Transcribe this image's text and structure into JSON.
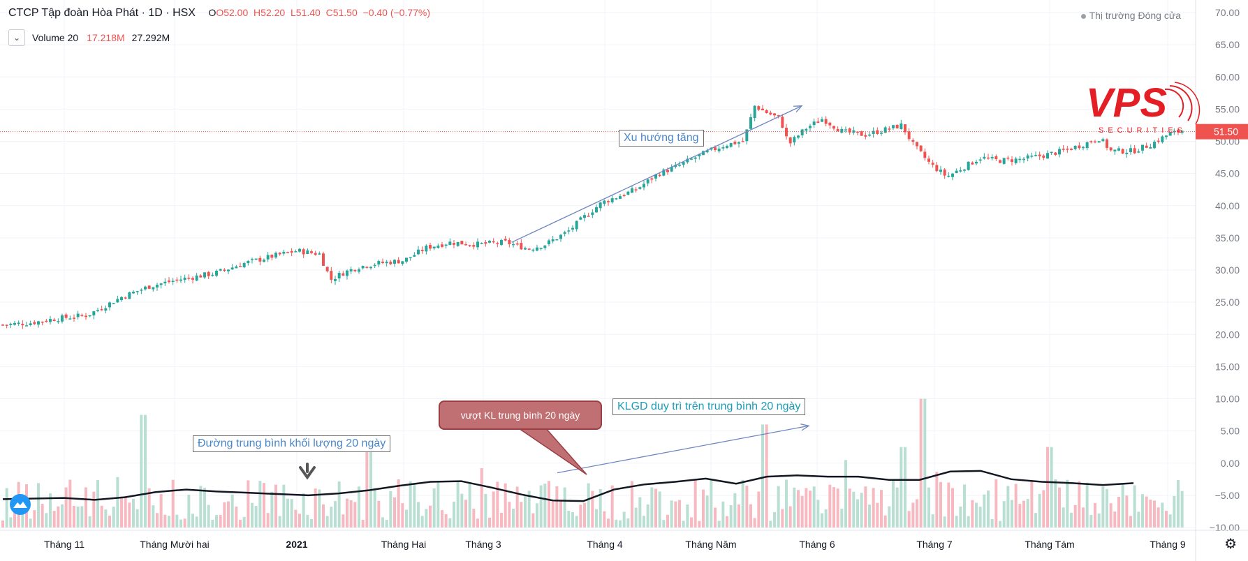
{
  "header": {
    "title": "CTCP Tập đoàn Hòa Phát · 1D · HSX",
    "ohlc_open": "O52.00",
    "ohlc_high": "H52.20",
    "ohlc_low": "L51.40",
    "ohlc_close": "C51.50",
    "ohlc_change": "−0.40 (−0.77%)"
  },
  "volume_legend": {
    "label": "Volume 20",
    "value1": "17.218M",
    "value2": "27.292M"
  },
  "market_status": "Thị trường Đóng cửa",
  "logo": {
    "brand": "VPS",
    "tagline": "SECURITIES"
  },
  "price_badge": "51.50",
  "annotations": {
    "uptrend": "Xu hướng tăng",
    "ma20_volume": "Đường trung bình khối lượng 20 ngày",
    "above_avg": "vượt KL trung bình 20 ngày",
    "sustain": "KLGD duy trì trên trung bình 20 ngày"
  },
  "colors": {
    "up": "#26a69a",
    "down": "#ef5350",
    "vol_up": "#b9dfd3",
    "vol_down": "#f7b8c0",
    "arrow": "#6f86c2",
    "grid": "#f0f3fa"
  },
  "chart_data": {
    "type": "candlestick",
    "title": "CTCP Tập đoàn Hòa Phát · 1D · HSX",
    "y_axis": {
      "ticks": [
        "70.00",
        "65.00",
        "60.00",
        "55.00",
        "50.00",
        "45.00",
        "40.00",
        "35.00",
        "30.00",
        "25.00",
        "20.00",
        "15.00",
        "10.00",
        "5.00",
        "0.00",
        "−5.00",
        "−10.00"
      ],
      "range": [
        -10,
        70
      ]
    },
    "x_axis": {
      "ticks": [
        "Tháng 11",
        "Tháng Mười hai",
        "2021",
        "Tháng Hai",
        "Tháng 3",
        "Tháng 4",
        "Tháng Năm",
        "Tháng 6",
        "Tháng 7",
        "Tháng Tám",
        "Tháng 9"
      ]
    },
    "close_path": [
      [
        0,
        21.5
      ],
      [
        10,
        21.8
      ],
      [
        18,
        22.4
      ],
      [
        30,
        23.0
      ],
      [
        42,
        25.8
      ],
      [
        52,
        27.5
      ],
      [
        62,
        28.5
      ],
      [
        75,
        29.5
      ],
      [
        85,
        31.0
      ],
      [
        96,
        32.2
      ],
      [
        104,
        33.0
      ],
      [
        112,
        32.5
      ],
      [
        116,
        28.5
      ],
      [
        120,
        29.5
      ],
      [
        126,
        30.5
      ],
      [
        132,
        31.0
      ],
      [
        142,
        31.5
      ],
      [
        150,
        33.5
      ],
      [
        158,
        34.3
      ],
      [
        168,
        34.0
      ],
      [
        178,
        34.3
      ],
      [
        186,
        33.3
      ],
      [
        192,
        34.0
      ],
      [
        200,
        36.0
      ],
      [
        205,
        38.0
      ],
      [
        212,
        40.5
      ],
      [
        218,
        41.5
      ],
      [
        224,
        42.5
      ],
      [
        232,
        45.0
      ],
      [
        238,
        46.0
      ],
      [
        245,
        47.5
      ],
      [
        250,
        48.5
      ],
      [
        256,
        49.5
      ],
      [
        262,
        50.0
      ],
      [
        266,
        55.5
      ],
      [
        270,
        54.5
      ],
      [
        275,
        53.5
      ],
      [
        278,
        49.5
      ],
      [
        284,
        52.0
      ],
      [
        290,
        53.5
      ],
      [
        297,
        51.5
      ],
      [
        305,
        51.0
      ],
      [
        312,
        51.8
      ],
      [
        318,
        52.5
      ],
      [
        322,
        49.5
      ],
      [
        328,
        46.5
      ],
      [
        334,
        44.5
      ],
      [
        340,
        46.0
      ],
      [
        346,
        47.5
      ],
      [
        352,
        47.0
      ],
      [
        360,
        47.2
      ],
      [
        368,
        47.8
      ],
      [
        375,
        48.5
      ],
      [
        382,
        49.5
      ],
      [
        388,
        50.5
      ],
      [
        392,
        48.5
      ],
      [
        400,
        48.5
      ],
      [
        406,
        49.5
      ],
      [
        412,
        51.0
      ],
      [
        418,
        51.8
      ]
    ],
    "last_price": 51.5,
    "volume": {
      "ma20_label": "Volume 20",
      "ma20_values": [
        -5.6,
        -5.5,
        -5.4,
        -5.7,
        -5.3,
        -4.5,
        -4.1,
        -4.4,
        -4.6,
        -4.8,
        -5.0,
        -4.7,
        -4.2,
        -3.5,
        -2.9,
        -2.8,
        -3.8,
        -4.9,
        -5.8,
        -5.9,
        -4.1,
        -3.3,
        -2.9,
        -2.4,
        -3.2,
        -2.1,
        -1.9,
        -2.1,
        -2.1,
        -2.6,
        -2.6,
        -1.3,
        -1.2,
        -2.5,
        -2.9,
        -3.1,
        -3.4,
        -3.1
      ],
      "bars_min": -10,
      "bars_max": 10
    },
    "trend_arrows": [
      {
        "from_day": 180,
        "from_price": 34.3,
        "to_day": 270,
        "to_price": 55.5
      },
      {
        "from_day": 184,
        "from_vol": -1.5,
        "to_day": 270,
        "to_vol": 5.8
      }
    ]
  }
}
